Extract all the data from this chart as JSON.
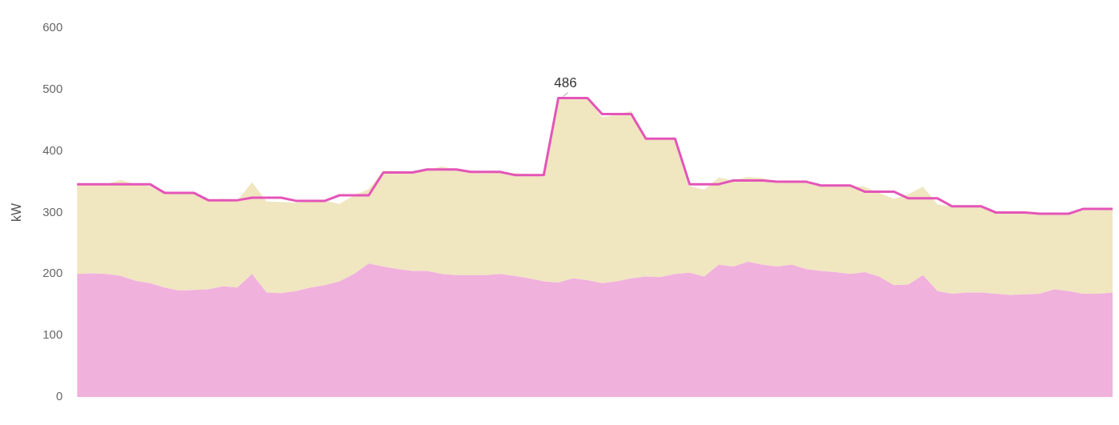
{
  "chart_data": {
    "type": "area",
    "ylabel": "kW",
    "stacked": true,
    "ylim": [
      0,
      600
    ],
    "yticks": [
      0,
      100,
      200,
      300,
      400,
      500,
      600
    ],
    "grid": false,
    "legend": false,
    "tick_labels": "y",
    "marker": "none",
    "categories": [
      null,
      null,
      null,
      null,
      null,
      null,
      null,
      null,
      null,
      null,
      null,
      null,
      null,
      null,
      null,
      null,
      null,
      null,
      null,
      null,
      null,
      null,
      null,
      null,
      null,
      null,
      null,
      null,
      null,
      null,
      null,
      null,
      null,
      null,
      null,
      null,
      null,
      null,
      null,
      null,
      null,
      null,
      null,
      null,
      null,
      null,
      null,
      null,
      null,
      null,
      null,
      null,
      null,
      null,
      null,
      null,
      null,
      null,
      null,
      null,
      null,
      null,
      null,
      null,
      null,
      null,
      null,
      null,
      null,
      null,
      null,
      null
    ],
    "series": [
      {
        "color": "#f0b1dc",
        "values": [
          200,
          201,
          200,
          197,
          189,
          185,
          178,
          173,
          174,
          175,
          180,
          178,
          200,
          170,
          169,
          172,
          178,
          182,
          188,
          200,
          217,
          212,
          208,
          205,
          205,
          200,
          198,
          198,
          198,
          200,
          197,
          193,
          188,
          186,
          193,
          190,
          185,
          188,
          193,
          196,
          195,
          200,
          202,
          196,
          215,
          212,
          220,
          215,
          212,
          215,
          208,
          205,
          203,
          200,
          203,
          196,
          182,
          183,
          198,
          172,
          168,
          170,
          170,
          168,
          166,
          167,
          168,
          175,
          172,
          168,
          168,
          170
        ]
      },
      {
        "color": "#f0e6c0",
        "values": [
          146,
          145,
          146,
          156,
          157,
          158,
          153,
          158,
          157,
          145,
          142,
          142,
          149,
          148,
          148,
          144,
          140,
          137,
          126,
          128,
          121,
          156,
          159,
          162,
          164,
          175,
          172,
          167,
          166,
          166,
          167,
          169,
          170,
          300,
          295,
          297,
          270,
          271,
          272,
          224,
          224,
          220,
          141,
          141,
          142,
          140,
          138,
          141,
          138,
          137,
          142,
          139,
          141,
          143,
          139,
          136,
          140,
          147,
          144,
          141,
          142,
          140,
          139,
          133,
          134,
          133,
          129,
          125,
          124,
          136,
          136,
          136
        ]
      },
      {
        "type": "line",
        "color": "#e455b8",
        "line_style": "solid",
        "values": [
          346,
          346,
          346,
          346,
          346,
          346,
          332,
          332,
          332,
          320,
          320,
          320,
          324,
          324,
          324,
          319,
          319,
          319,
          328,
          328,
          328,
          365,
          365,
          365,
          370,
          370,
          370,
          366,
          366,
          366,
          361,
          361,
          361,
          486,
          486,
          486,
          460,
          460,
          460,
          420,
          420,
          420,
          346,
          346,
          346,
          352,
          352,
          352,
          350,
          350,
          350,
          344,
          344,
          344,
          334,
          334,
          334,
          323,
          323,
          323,
          310,
          310,
          310,
          300,
          300,
          300,
          298,
          298,
          298,
          306,
          306,
          306
        ]
      }
    ],
    "annotations": [
      {
        "text": "486",
        "y": 486
      }
    ]
  }
}
